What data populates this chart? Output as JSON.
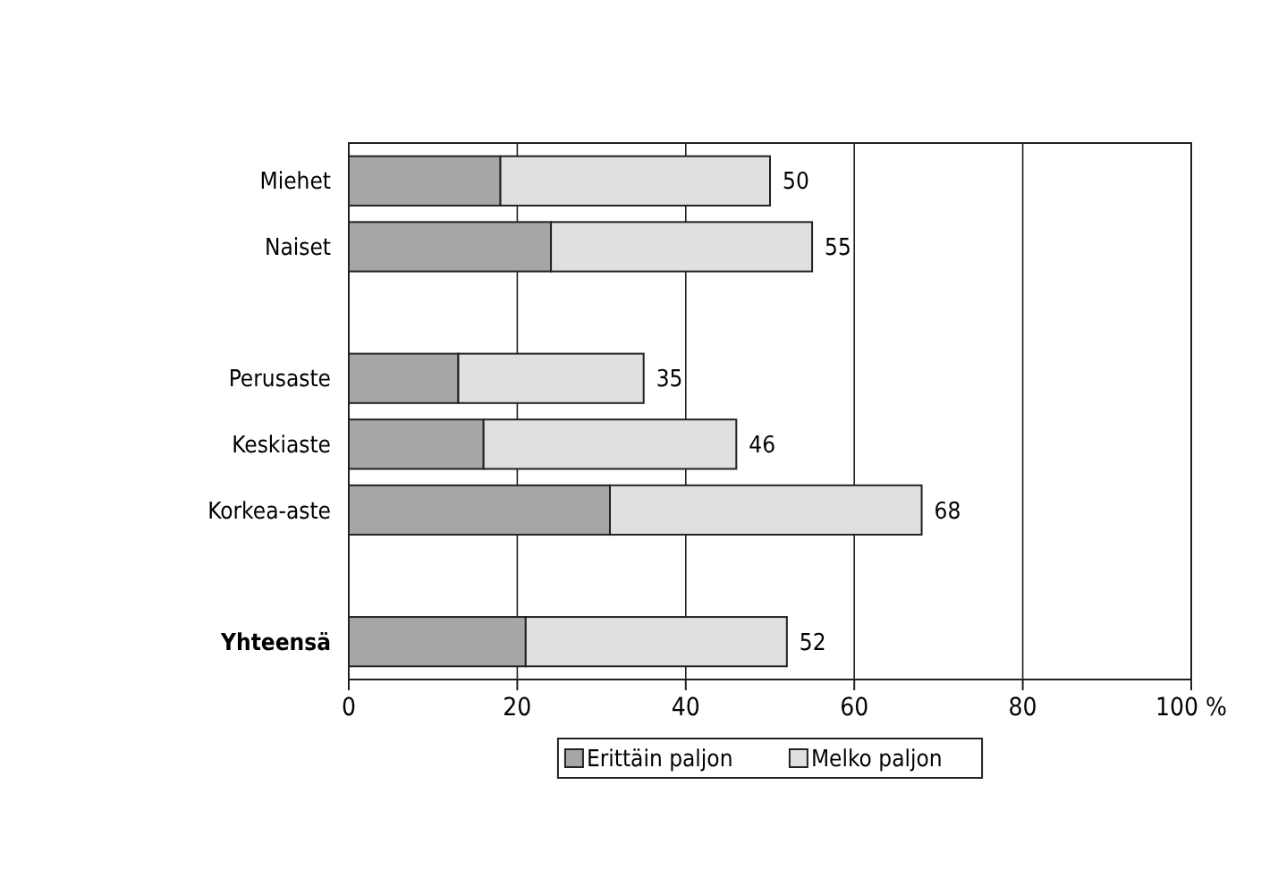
{
  "chart_data": {
    "type": "bar",
    "orientation": "horizontal",
    "stacked": true,
    "categories": [
      "Miehet",
      "Naiset",
      null,
      "Perusaste",
      "Keskiaste",
      "Korkea-aste",
      null,
      "Yhteensä"
    ],
    "series": [
      {
        "name": "Erittäin paljon",
        "color": "#a6a6a6",
        "values": [
          18,
          24,
          null,
          13,
          16,
          31,
          null,
          21
        ]
      },
      {
        "name": "Melko paljon",
        "color": "#e0e0e0",
        "values": [
          32,
          31,
          null,
          22,
          30,
          37,
          null,
          31
        ]
      }
    ],
    "totals": [
      "50",
      "55",
      null,
      "35",
      "46",
      "68",
      null,
      "52"
    ],
    "xlim": [
      0,
      100
    ],
    "xticks": [
      0,
      20,
      40,
      60,
      80,
      {
        "value": 100,
        "label": "100 %"
      }
    ],
    "grid": "x",
    "legend": "bottom"
  }
}
